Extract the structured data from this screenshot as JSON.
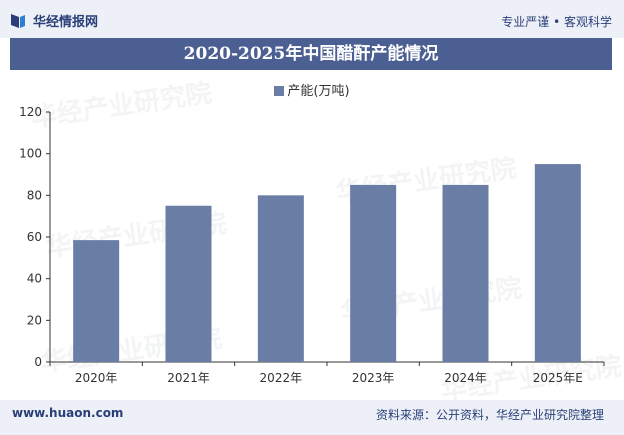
{
  "header": {
    "brand": "华经情报网",
    "tagline": "专业严谨 • 客观科学"
  },
  "chart_title": "2020-2025年中国醋酐产能情况",
  "chart_data": {
    "type": "bar",
    "title": "2020-2025年中国醋酐产能情况",
    "categories": [
      "2020年",
      "2021年",
      "2022年",
      "2023年",
      "2024年",
      "2025年E"
    ],
    "series": [
      {
        "name": "产能(万吨)",
        "values": [
          58.5,
          75,
          80,
          85,
          85,
          95
        ],
        "color": "#6a7da5"
      }
    ],
    "ylim": [
      0,
      120
    ],
    "yticks": [
      0,
      20,
      40,
      60,
      80,
      100,
      120
    ],
    "xlabel": "",
    "ylabel": "",
    "legend": "top-center",
    "grid": false
  },
  "footer": {
    "url": "www.huaon.com",
    "source": "资料来源：公开资料，华经产业研究院整理"
  },
  "watermarks": [
    "华经产业研究院",
    "www.huaon.com"
  ]
}
